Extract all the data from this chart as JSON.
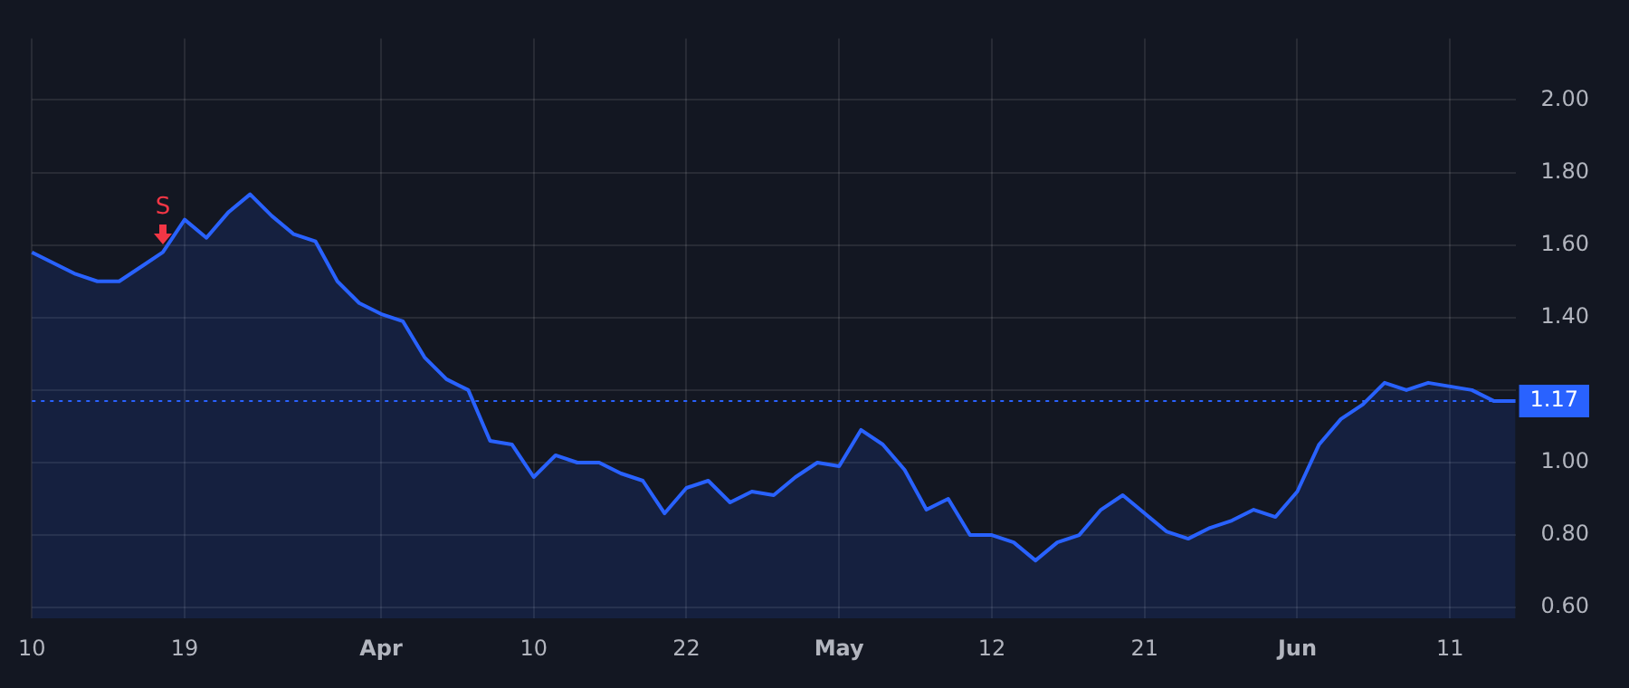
{
  "chart_data": {
    "type": "area",
    "categories": [
      "10",
      null,
      null,
      null,
      null,
      null,
      null,
      "19",
      null,
      null,
      null,
      null,
      null,
      null,
      null,
      null,
      "Apr",
      null,
      null,
      null,
      null,
      null,
      null,
      "10",
      null,
      null,
      null,
      null,
      null,
      null,
      "22",
      null,
      null,
      null,
      null,
      null,
      null,
      "May",
      null,
      null,
      null,
      null,
      null,
      null,
      "12",
      null,
      null,
      null,
      null,
      null,
      null,
      "21",
      null,
      null,
      null,
      null,
      null,
      null,
      "Jun",
      null,
      null,
      null,
      null,
      null,
      null,
      "11",
      null,
      null,
      null
    ],
    "series": [
      {
        "color": "#2962ff",
        "values": [
          1.58,
          1.55,
          1.52,
          1.5,
          1.5,
          1.54,
          1.58,
          1.67,
          1.62,
          1.69,
          1.74,
          1.68,
          1.63,
          1.61,
          1.5,
          1.44,
          1.41,
          1.39,
          1.29,
          1.23,
          1.2,
          1.06,
          1.05,
          0.96,
          1.02,
          1.0,
          1.0,
          0.97,
          0.95,
          0.86,
          0.93,
          0.95,
          0.89,
          0.92,
          0.91,
          0.96,
          1.0,
          0.99,
          1.09,
          1.05,
          0.98,
          0.87,
          0.9,
          0.8,
          0.8,
          0.78,
          0.73,
          0.78,
          0.8,
          0.87,
          0.91,
          0.86,
          0.81,
          0.79,
          0.82,
          0.84,
          0.87,
          0.85,
          0.92,
          1.05,
          1.12,
          1.16,
          1.22,
          1.2,
          1.22,
          1.21,
          1.2,
          1.17,
          1.17
        ]
      }
    ],
    "ylim": [
      0.57,
      2.17
    ],
    "yticks": [
      {
        "value": 0.6,
        "label": "0.60"
      },
      {
        "value": 0.8,
        "label": "0.80"
      },
      {
        "value": 1.0,
        "label": "1.00"
      },
      {
        "value": 1.2,
        "label": null
      },
      {
        "value": 1.4,
        "label": "1.40"
      },
      {
        "value": 1.6,
        "label": "1.60"
      },
      {
        "value": 1.8,
        "label": "1.80"
      },
      {
        "value": 2.0,
        "label": "2.00"
      }
    ],
    "grid": true,
    "legend": false,
    "marker": "none",
    "line_style": "solid",
    "ref_lines": [
      {
        "axis": "y",
        "value": 1.17,
        "label": "1.17",
        "color": "#2962ff",
        "line_style": "dotted"
      }
    ],
    "annotations": [
      "S"
    ]
  }
}
